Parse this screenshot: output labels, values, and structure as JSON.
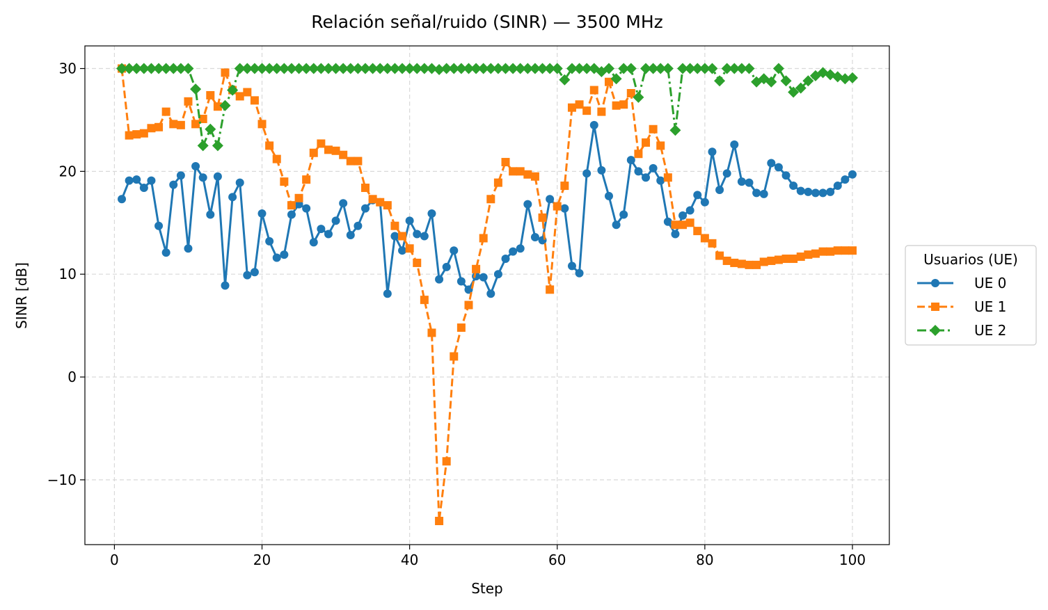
{
  "chart_data": {
    "type": "line",
    "title": "Relación señal/ruido (SINR) — 3500 MHz",
    "xlabel": "Step",
    "ylabel": "SINR [dB]",
    "xlim": [
      -4,
      105
    ],
    "ylim": [
      -16.3,
      32.2
    ],
    "xticks": [
      0,
      20,
      40,
      60,
      80,
      100
    ],
    "yticks": [
      -10,
      0,
      10,
      20,
      30
    ],
    "ytick_labels": [
      "−10",
      "0",
      "10",
      "20",
      "30"
    ],
    "grid": true,
    "legend": {
      "title": "Usuarios (UE)",
      "placement": "right, outside plot"
    },
    "x": [
      1,
      2,
      3,
      4,
      5,
      6,
      7,
      8,
      9,
      10,
      11,
      12,
      13,
      14,
      15,
      16,
      17,
      18,
      19,
      20,
      21,
      22,
      23,
      24,
      25,
      26,
      27,
      28,
      29,
      30,
      31,
      32,
      33,
      34,
      35,
      36,
      37,
      38,
      39,
      40,
      41,
      42,
      43,
      44,
      45,
      46,
      47,
      48,
      49,
      50,
      51,
      52,
      53,
      54,
      55,
      56,
      57,
      58,
      59,
      60,
      61,
      62,
      63,
      64,
      65,
      66,
      67,
      68,
      69,
      70,
      71,
      72,
      73,
      74,
      75,
      76,
      77,
      78,
      79,
      80,
      81,
      82,
      83,
      84,
      85,
      86,
      87,
      88,
      89,
      90,
      91,
      92,
      93,
      94,
      95,
      96,
      97,
      98,
      99,
      100
    ],
    "series": [
      {
        "name": "UE 0",
        "color": "#1f77b4",
        "marker": "circle",
        "linestyle": "solid",
        "values": [
          17.3,
          19.1,
          19.2,
          18.4,
          19.1,
          14.7,
          12.1,
          18.7,
          19.6,
          12.5,
          20.5,
          19.4,
          15.8,
          19.5,
          8.9,
          17.5,
          18.9,
          9.9,
          10.2,
          15.9,
          13.2,
          11.6,
          11.9,
          15.8,
          16.8,
          16.4,
          13.1,
          14.4,
          13.9,
          15.2,
          16.9,
          13.8,
          14.7,
          16.4,
          17.2,
          17.0,
          8.1,
          13.7,
          12.3,
          15.2,
          13.9,
          13.7,
          15.9,
          9.5,
          10.7,
          12.3,
          9.3,
          8.5,
          9.8,
          9.7,
          8.1,
          10.0,
          11.5,
          12.2,
          12.5,
          16.8,
          13.6,
          13.3,
          17.3,
          16.6,
          16.4,
          10.8,
          10.1,
          19.8,
          24.5,
          20.1,
          17.6,
          14.8,
          15.8,
          21.1,
          20.0,
          19.4,
          20.3,
          19.1,
          15.1,
          13.9,
          15.7,
          16.2,
          17.7,
          17.0,
          21.9,
          18.2,
          19.8,
          22.6,
          19.0,
          18.9,
          17.9,
          17.8,
          20.8,
          20.4,
          19.6,
          18.6,
          18.1,
          18.0,
          17.9,
          17.9,
          18.0,
          18.6,
          19.2,
          19.7
        ]
      },
      {
        "name": "UE 1",
        "color": "#ff7f0e",
        "marker": "square",
        "linestyle": "dashed",
        "values": [
          30.0,
          23.5,
          23.6,
          23.7,
          24.2,
          24.3,
          25.8,
          24.6,
          24.5,
          26.8,
          24.6,
          25.1,
          27.4,
          26.3,
          29.6,
          27.9,
          27.3,
          27.7,
          26.9,
          24.6,
          22.5,
          21.2,
          19.0,
          16.7,
          17.4,
          19.2,
          21.8,
          22.7,
          22.1,
          22.0,
          21.6,
          21.0,
          21.0,
          18.4,
          17.3,
          17.0,
          16.7,
          14.7,
          13.7,
          12.5,
          11.1,
          7.5,
          4.3,
          -14.0,
          -8.2,
          2.0,
          4.8,
          7.0,
          10.5,
          13.5,
          17.3,
          18.9,
          20.9,
          20.0,
          20.0,
          19.7,
          19.5,
          15.5,
          8.5,
          16.6,
          18.6,
          26.2,
          26.5,
          25.9,
          27.9,
          25.8,
          28.7,
          26.4,
          26.5,
          27.6,
          21.7,
          22.8,
          24.1,
          22.5,
          19.4,
          14.8,
          14.8,
          15.0,
          14.2,
          13.5,
          13.0,
          11.8,
          11.3,
          11.1,
          11.0,
          10.9,
          10.9,
          11.2,
          11.3,
          11.4,
          11.5,
          11.5,
          11.7,
          11.9,
          12.0,
          12.2,
          12.2,
          12.3,
          12.3,
          12.3
        ]
      },
      {
        "name": "UE 2",
        "color": "#2ca02c",
        "marker": "diamond",
        "linestyle": "dashdot",
        "values": [
          30.0,
          30.0,
          30.0,
          30.0,
          30.0,
          30.0,
          30.0,
          30.0,
          30.0,
          30.0,
          28.0,
          22.5,
          24.1,
          22.5,
          26.4,
          27.9,
          30.0,
          30.0,
          30.0,
          30.0,
          30.0,
          30.0,
          30.0,
          30.0,
          30.0,
          30.0,
          30.0,
          30.0,
          30.0,
          30.0,
          30.0,
          30.0,
          30.0,
          30.0,
          30.0,
          30.0,
          30.0,
          30.0,
          30.0,
          30.0,
          30.0,
          30.0,
          30.0,
          29.9,
          30.0,
          30.0,
          30.0,
          30.0,
          30.0,
          30.0,
          30.0,
          30.0,
          30.0,
          30.0,
          30.0,
          30.0,
          30.0,
          30.0,
          30.0,
          30.0,
          28.9,
          30.0,
          30.0,
          30.0,
          30.0,
          29.7,
          30.0,
          29.0,
          30.0,
          30.0,
          27.2,
          30.0,
          30.0,
          30.0,
          30.0,
          24.0,
          30.0,
          30.0,
          30.0,
          30.0,
          30.0,
          28.8,
          30.0,
          30.0,
          30.0,
          30.0,
          28.7,
          29.0,
          28.7,
          30.0,
          28.8,
          27.7,
          28.1,
          28.8,
          29.3,
          29.6,
          29.4,
          29.2,
          29.0,
          29.1
        ]
      }
    ]
  }
}
